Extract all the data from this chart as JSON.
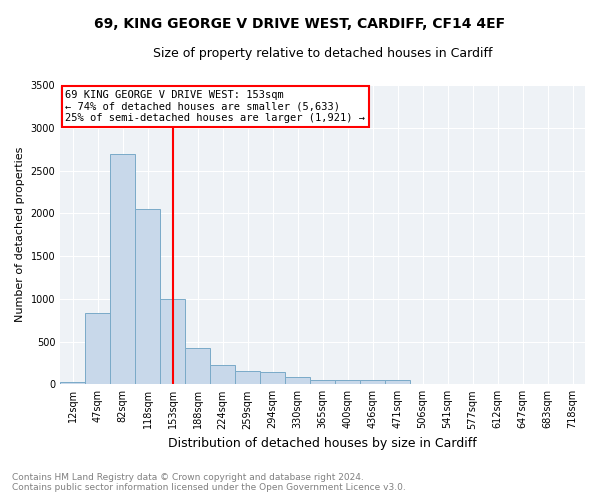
{
  "title": "69, KING GEORGE V DRIVE WEST, CARDIFF, CF14 4EF",
  "subtitle": "Size of property relative to detached houses in Cardiff",
  "xlabel": "Distribution of detached houses by size in Cardiff",
  "ylabel": "Number of detached properties",
  "categories": [
    "12sqm",
    "47sqm",
    "82sqm",
    "118sqm",
    "153sqm",
    "188sqm",
    "224sqm",
    "259sqm",
    "294sqm",
    "330sqm",
    "365sqm",
    "400sqm",
    "436sqm",
    "471sqm",
    "506sqm",
    "541sqm",
    "577sqm",
    "612sqm",
    "647sqm",
    "683sqm",
    "718sqm"
  ],
  "values": [
    30,
    830,
    2700,
    2050,
    1000,
    430,
    230,
    160,
    145,
    90,
    55,
    50,
    50,
    50,
    0,
    0,
    0,
    0,
    0,
    0,
    0
  ],
  "bar_color": "#c8d8ea",
  "bar_edge_color": "#7aaac8",
  "red_line_index": 4,
  "red_line_label": "69 KING GEORGE V DRIVE WEST: 153sqm",
  "annotation_line1": "← 74% of detached houses are smaller (5,633)",
  "annotation_line2": "25% of semi-detached houses are larger (1,921) →",
  "ylim": [
    0,
    3500
  ],
  "yticks": [
    0,
    500,
    1000,
    1500,
    2000,
    2500,
    3000,
    3500
  ],
  "footnote1": "Contains HM Land Registry data © Crown copyright and database right 2024.",
  "footnote2": "Contains public sector information licensed under the Open Government Licence v3.0.",
  "background_color": "#ffffff",
  "plot_bg_color": "#eef2f6",
  "grid_color": "#ffffff",
  "title_fontsize": 10,
  "subtitle_fontsize": 9,
  "ylabel_fontsize": 8,
  "xlabel_fontsize": 9,
  "tick_fontsize": 7,
  "annotation_fontsize": 7.5,
  "footnote_fontsize": 6.5
}
